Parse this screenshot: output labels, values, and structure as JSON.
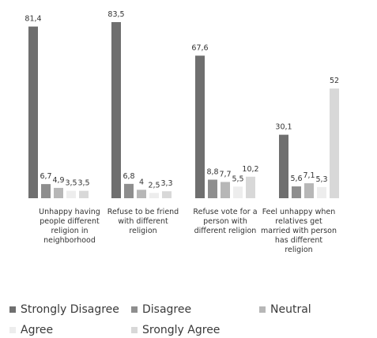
{
  "chart_data": {
    "type": "bar",
    "categories": [
      [
        "Unhappy having",
        "people different",
        "religion in",
        "neighborhood"
      ],
      [
        "Refuse to be friend",
        "with different",
        "religion"
      ],
      [
        "Refuse vote for a",
        "person with",
        "different religion"
      ],
      [
        "Feel unhappy when",
        "relatives get",
        "married with person",
        "has different",
        "religion"
      ]
    ],
    "series": [
      {
        "name": "Strongly Disagree",
        "color": "#6f6f6f",
        "values": [
          81.4,
          83.5,
          67.6,
          30.1
        ],
        "labels": [
          "81,4",
          "83,5",
          "67,6",
          "30,1"
        ]
      },
      {
        "name": "Disagree",
        "color": "#8e8e8e",
        "values": [
          6.7,
          6.8,
          8.8,
          5.6
        ],
        "labels": [
          "6,7",
          "6,8",
          "8,8",
          "5,6"
        ]
      },
      {
        "name": "Neutral",
        "color": "#b7b7b7",
        "values": [
          4.9,
          4,
          7.7,
          7.1
        ],
        "labels": [
          "4,9",
          "4",
          "7,7",
          "7,1"
        ]
      },
      {
        "name": "Agree",
        "color": "#ededed",
        "values": [
          3.5,
          2.5,
          5.5,
          5.3
        ],
        "labels": [
          "3,5",
          "2,5",
          "5,5",
          "5,3"
        ]
      },
      {
        "name": "Srongly Agree",
        "color": "#d8d8d8",
        "values": [
          3.5,
          3.3,
          10.2,
          52
        ],
        "labels": [
          "3,5",
          "3,3",
          "10,2",
          "52"
        ]
      }
    ],
    "ylim": [
      0,
      83.5
    ],
    "grid": false,
    "legend_position": "bottom"
  }
}
